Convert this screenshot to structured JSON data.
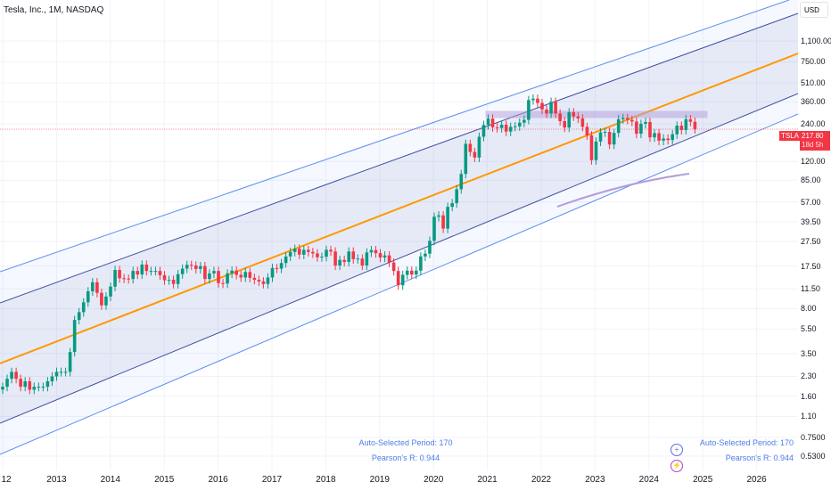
{
  "header": {
    "title": "Tesla, Inc., 1M, NASDAQ",
    "currency": "USD"
  },
  "price_tag": {
    "symbol": "TSLA",
    "price": "217.80",
    "countdown": "18d 5h"
  },
  "stats_left": {
    "period": "Auto-Selected Period: 170",
    "pearson": "Pearson's R: 0.944"
  },
  "stats_right": {
    "period": "Auto-Selected Period: 170",
    "pearson": "Pearson's R: 0.944"
  },
  "colors": {
    "up": "#089981",
    "down": "#f23645",
    "mid": "#ff9800",
    "inner": "#3d4fa3",
    "outer": "#5b8def",
    "zone": "#b39ddb"
  },
  "chart_data": {
    "type": "candlestick",
    "title": "Tesla, Inc., 1M, NASDAQ",
    "scale": "log",
    "y_ticks": [
      "1,100.00",
      "750.00",
      "510.00",
      "360.00",
      "240.00",
      "120.00",
      "85.00",
      "57.00",
      "39.50",
      "27.50",
      "17.50",
      "11.50",
      "8.00",
      "5.50",
      "3.50",
      "2.30",
      "1.60",
      "1.10",
      "0.7500",
      "0.5300"
    ],
    "x_ticks": [
      "12",
      "2013",
      "2014",
      "2015",
      "2016",
      "2017",
      "2018",
      "2019",
      "2020",
      "2021",
      "2022",
      "2023",
      "2024",
      "2025",
      "2026"
    ],
    "start": "2012-01",
    "monthly_close": [
      1.9,
      2.2,
      2.5,
      2.2,
      1.9,
      2.1,
      1.8,
      1.9,
      1.9,
      1.9,
      2.1,
      2.3,
      2.5,
      2.5,
      2.5,
      3.6,
      6.5,
      7.5,
      9,
      11,
      13,
      10.7,
      8.5,
      10,
      12,
      16.3,
      14,
      13.9,
      13.8,
      16,
      15,
      18,
      16,
      16,
      16,
      14.8,
      13.5,
      13.6,
      12.6,
      15.1,
      16.7,
      17.9,
      17.7,
      16.6,
      17.5,
      13.8,
      15.3,
      16,
      12.8,
      12.7,
      15.3,
      16.1,
      14.9,
      14.2,
      15.7,
      14.1,
      13.6,
      13.2,
      12.6,
      14.2,
      16.9,
      16.7,
      18.5,
      20.9,
      22.7,
      24.1,
      21.6,
      23.6,
      22.7,
      22.1,
      20.6,
      20.8,
      23.6,
      22.9,
      17.7,
      19.6,
      18.9,
      22.9,
      19.9,
      20.1,
      17.7,
      22.5,
      23.5,
      22.2,
      20.5,
      21.3,
      18.7,
      16,
      12.3,
      14.9,
      16.1,
      15,
      16.1,
      20.9,
      22,
      27.9,
      43.4,
      44.5,
      34.9,
      52.1,
      55.7,
      72,
      95.4,
      166,
      143,
      129,
      189,
      235,
      264,
      225,
      222,
      236,
      208,
      227,
      229,
      245,
      258,
      371,
      381,
      352,
      312,
      290,
      360,
      290,
      252,
      224,
      297,
      275,
      265,
      227,
      194,
      123,
      173,
      205,
      207,
      164,
      203,
      261,
      267,
      258,
      250,
      200,
      240,
      248,
      187,
      202,
      176,
      183,
      178,
      198,
      232,
      214,
      261,
      249,
      217.8
    ],
    "regression_channel": {
      "period": 170,
      "pearson_r": 0.944
    }
  }
}
